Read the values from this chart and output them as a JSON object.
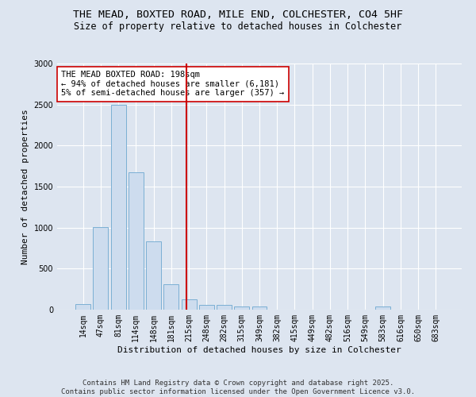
{
  "title_line1": "THE MEAD, BOXTED ROAD, MILE END, COLCHESTER, CO4 5HF",
  "title_line2": "Size of property relative to detached houses in Colchester",
  "xlabel": "Distribution of detached houses by size in Colchester",
  "ylabel": "Number of detached properties",
  "categories": [
    "14sqm",
    "47sqm",
    "81sqm",
    "114sqm",
    "148sqm",
    "181sqm",
    "215sqm",
    "248sqm",
    "282sqm",
    "315sqm",
    "349sqm",
    "382sqm",
    "415sqm",
    "449sqm",
    "482sqm",
    "516sqm",
    "549sqm",
    "583sqm",
    "616sqm",
    "650sqm",
    "683sqm"
  ],
  "values": [
    65,
    1010,
    2500,
    1670,
    830,
    305,
    130,
    60,
    55,
    40,
    35,
    0,
    0,
    0,
    0,
    0,
    0,
    35,
    0,
    0,
    0
  ],
  "bar_color": "#cddcee",
  "bar_edge_color": "#7bafd4",
  "vline_x": 5.85,
  "vline_color": "#cc0000",
  "annotation_text": "THE MEAD BOXTED ROAD: 198sqm\n← 94% of detached houses are smaller (6,181)\n5% of semi-detached houses are larger (357) →",
  "annotation_box_color": "#ffffff",
  "annotation_box_edge": "#cc0000",
  "ylim": [
    0,
    3000
  ],
  "yticks": [
    0,
    500,
    1000,
    1500,
    2000,
    2500,
    3000
  ],
  "background_color": "#dde5f0",
  "plot_bg_color": "#dde5f0",
  "grid_color": "#ffffff",
  "footer_line1": "Contains HM Land Registry data © Crown copyright and database right 2025.",
  "footer_line2": "Contains public sector information licensed under the Open Government Licence v3.0.",
  "title_fontsize": 9.5,
  "subtitle_fontsize": 8.5,
  "axis_label_fontsize": 8,
  "tick_fontsize": 7,
  "annotation_fontsize": 7.5,
  "footer_fontsize": 6.5
}
